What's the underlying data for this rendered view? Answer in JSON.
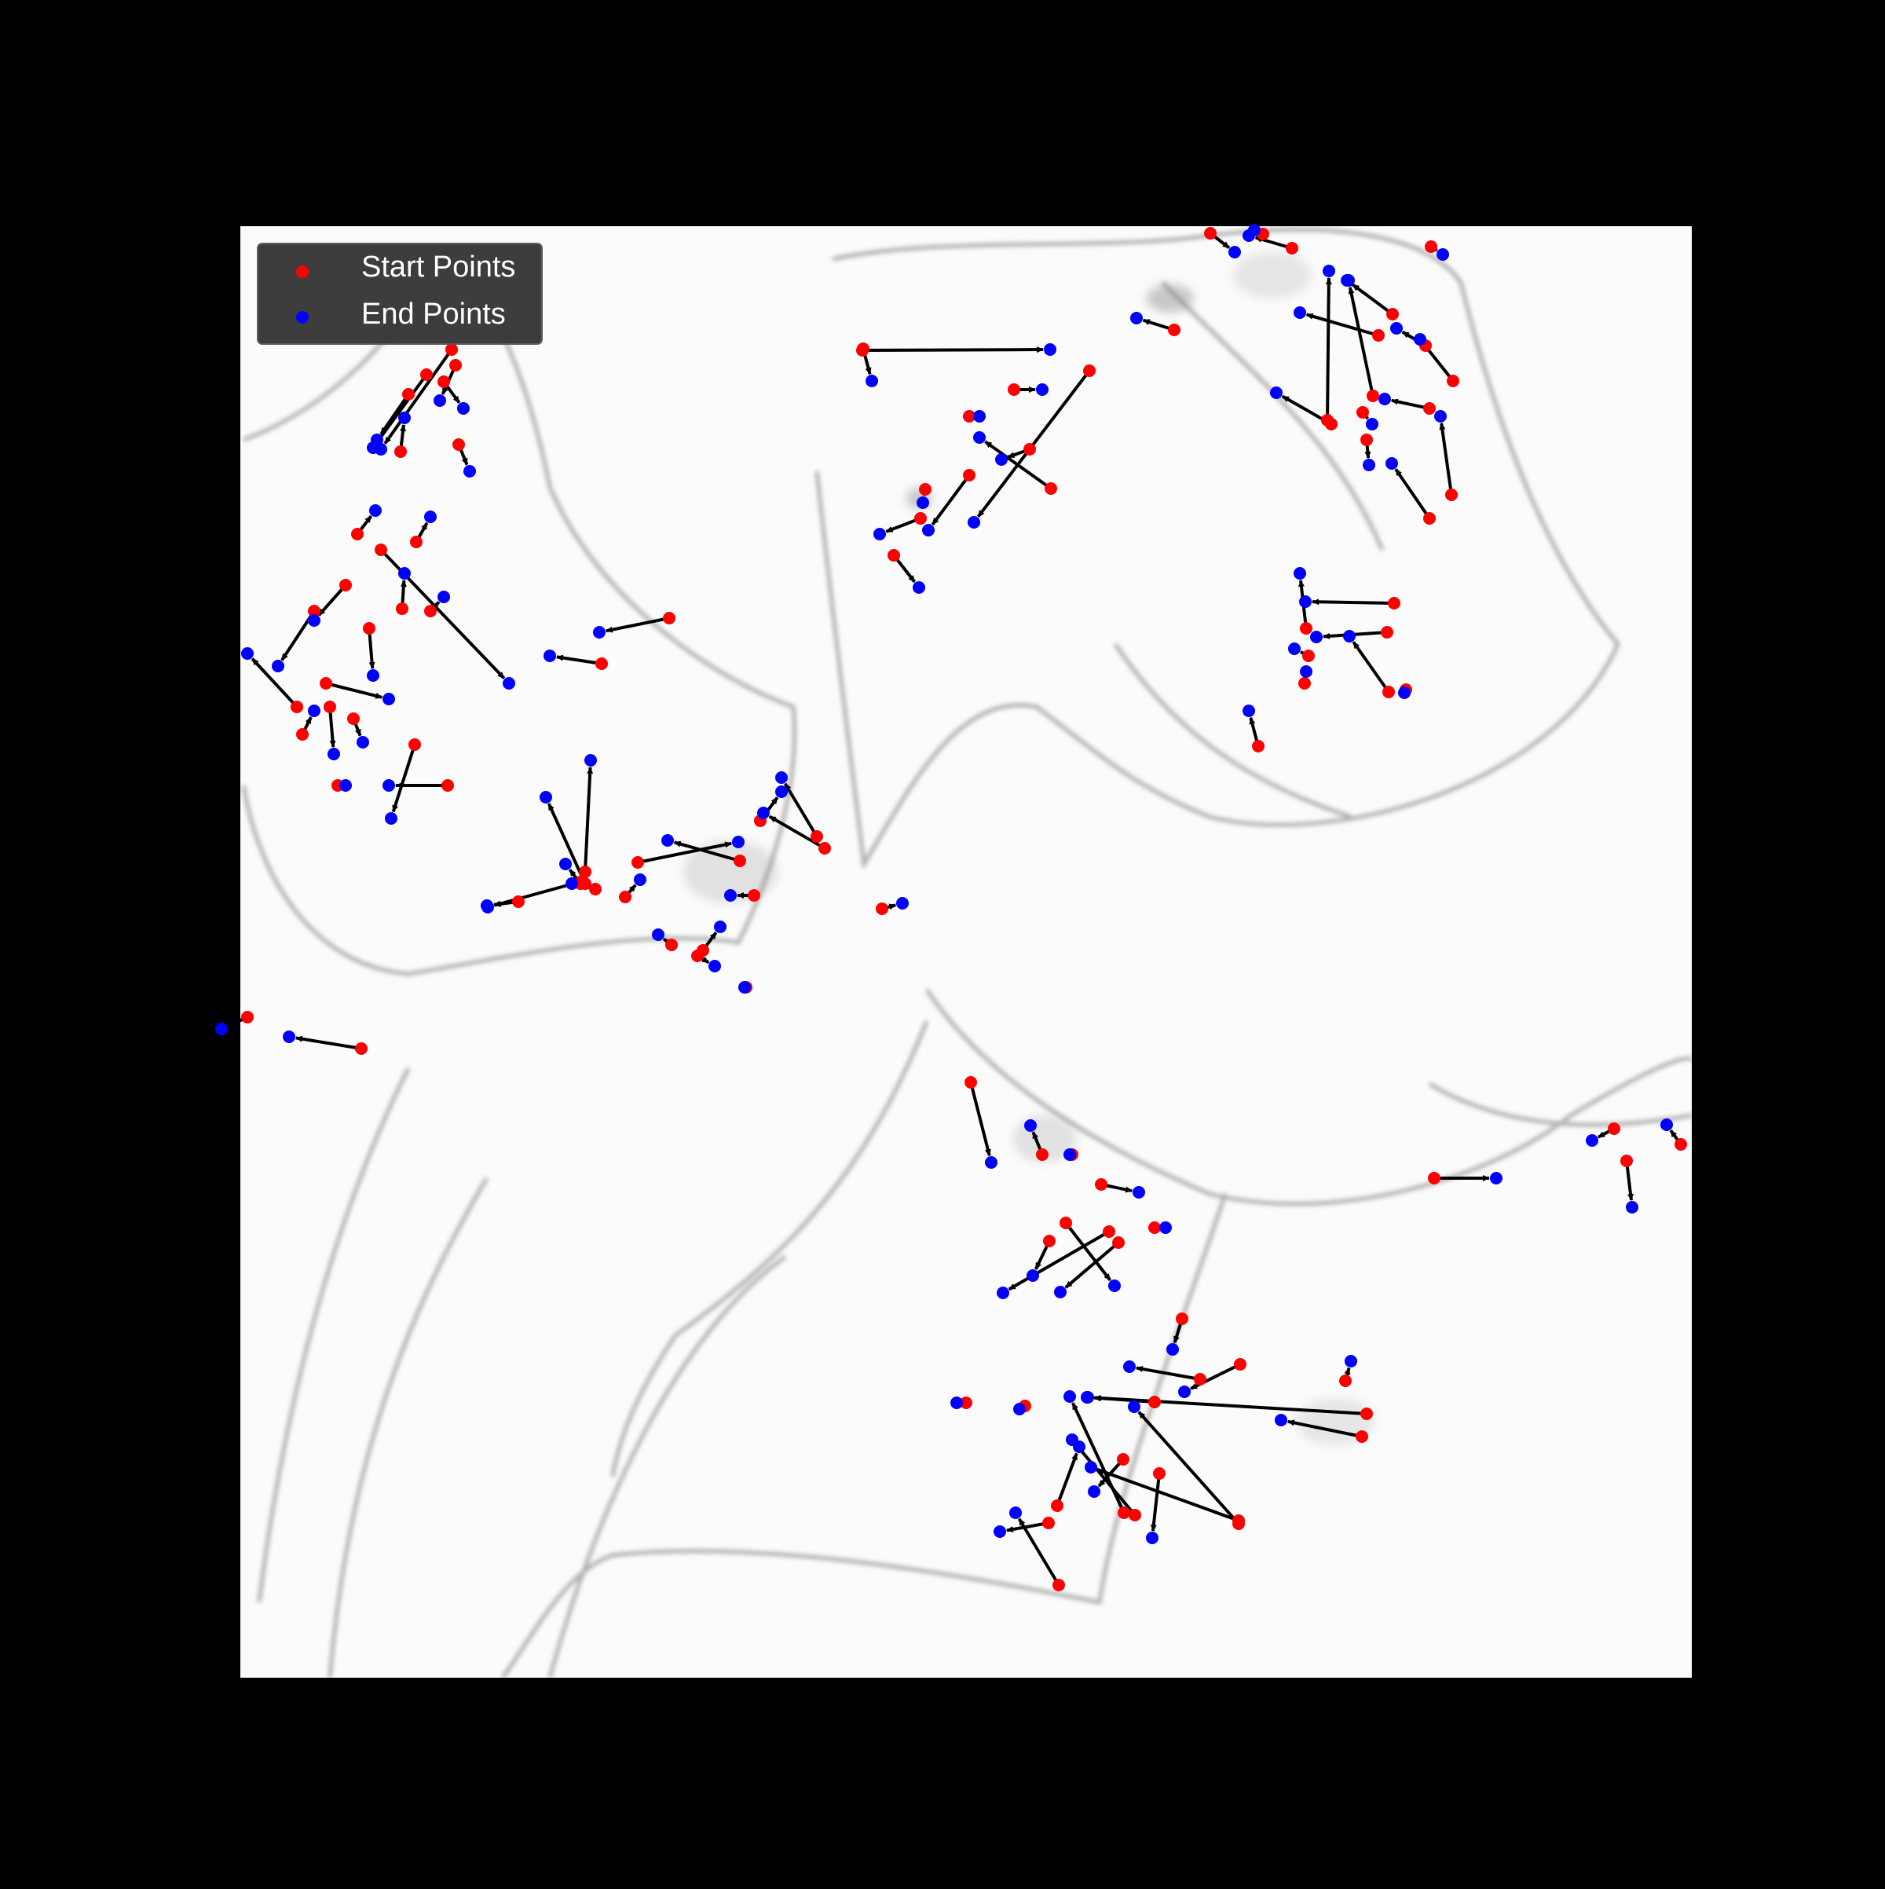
{
  "figure": {
    "background_color": "#000000",
    "image_description": "inverted fluorescence micrograph of cells (actin-like filaments, white background)"
  },
  "legend": {
    "placement": "top-left",
    "background_color": "#333333",
    "items": [
      {
        "label": "Start Points",
        "color": "#ff0000"
      },
      {
        "label": "End Points",
        "color": "#0000ff"
      }
    ]
  },
  "colors": {
    "start": "#ff0000",
    "end": "#0000ff",
    "arrow": "#000000"
  }
}
